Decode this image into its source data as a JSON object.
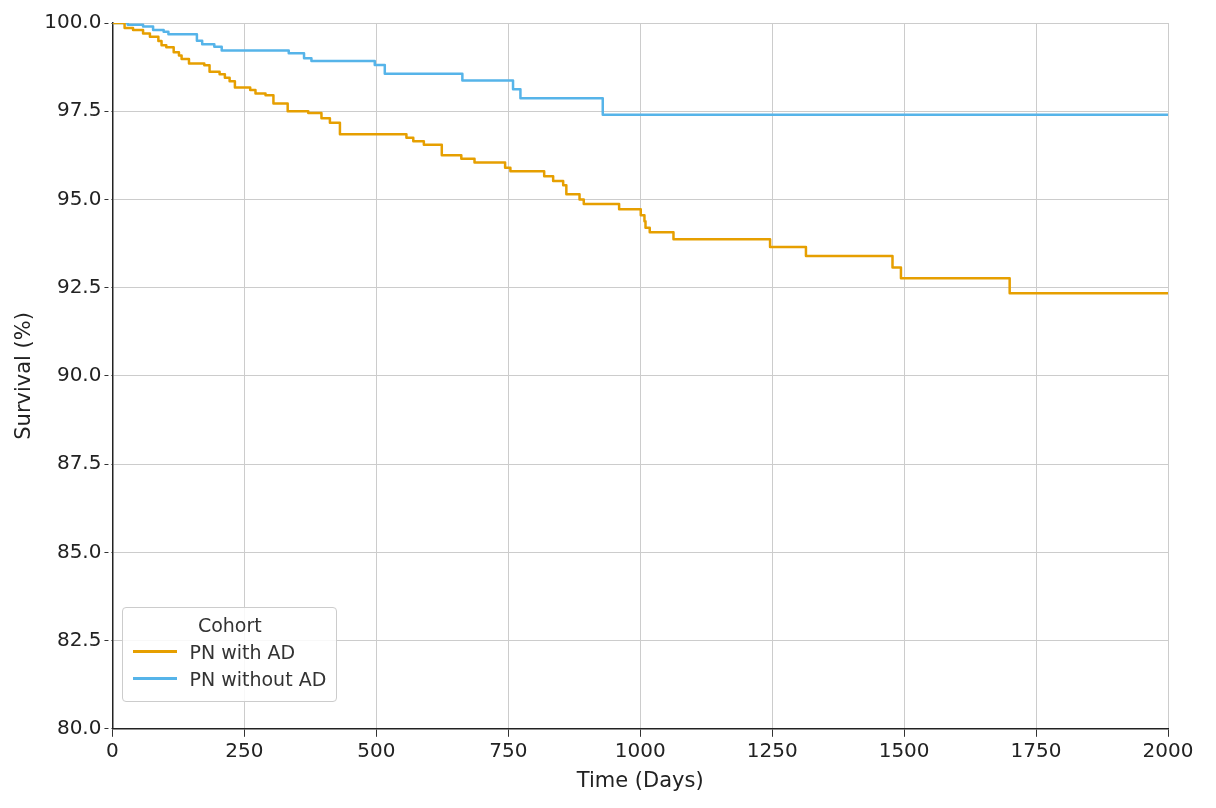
{
  "chart_data": {
    "type": "step",
    "xlabel": "Time (Days)",
    "ylabel": "Survival (%)",
    "legend_title": "Cohort",
    "legend": "bottom left",
    "grid": true,
    "xlim": [
      0,
      2000
    ],
    "xticks": [
      0,
      250,
      500,
      750,
      1000,
      1250,
      1500,
      1750,
      2000
    ],
    "ylim": [
      80,
      100
    ],
    "yticks": [
      {
        "value": 80,
        "label": "80.0"
      },
      {
        "value": 82.5,
        "label": "82.5"
      },
      {
        "value": 85,
        "label": "85.0"
      },
      {
        "value": 87.5,
        "label": "87.5"
      },
      {
        "value": 90,
        "label": "90.0"
      },
      {
        "value": 92.5,
        "label": "92.5"
      },
      {
        "value": 95,
        "label": "95.0"
      },
      {
        "value": 97.5,
        "label": "97.5"
      },
      {
        "value": 100,
        "label": "100.0"
      }
    ],
    "series": [
      {
        "name": "PN with AD",
        "color": "#e69f00",
        "x": [
          0,
          23,
          39,
          58,
          71,
          87,
          93,
          102,
          116,
          126,
          131,
          145,
          174,
          184,
          203,
          213,
          222,
          232,
          261,
          271,
          290,
          305,
          332,
          371,
          396,
          412,
          431,
          557,
          570,
          590,
          624,
          661,
          686,
          744,
          754,
          818,
          835,
          854,
          860,
          885,
          893,
          960,
          1001,
          1008,
          1010,
          1018,
          1063,
          1246,
          1314,
          1478,
          1494,
          1700,
          2000
        ],
        "values": [
          100,
          99.86,
          99.8,
          99.7,
          99.61,
          99.49,
          99.37,
          99.31,
          99.17,
          99.08,
          98.98,
          98.85,
          98.8,
          98.62,
          98.55,
          98.45,
          98.35,
          98.17,
          98.1,
          98.0,
          97.95,
          97.72,
          97.5,
          97.45,
          97.3,
          97.17,
          96.85,
          96.75,
          96.65,
          96.55,
          96.25,
          96.15,
          96.05,
          95.9,
          95.8,
          95.66,
          95.52,
          95.4,
          95.15,
          95.0,
          94.87,
          94.72,
          94.55,
          94.38,
          94.2,
          94.07,
          93.87,
          93.65,
          93.4,
          93.07,
          92.77,
          92.34,
          92.34
        ]
      },
      {
        "name": "PN without AD",
        "color": "#56b4e9",
        "x": [
          0,
          29,
          58,
          77,
          97,
          106,
          160,
          170,
          193,
          207,
          334,
          363,
          377,
          497,
          516,
          663,
          759,
          773,
          929,
          2000
        ],
        "values": [
          100,
          99.95,
          99.9,
          99.8,
          99.75,
          99.68,
          99.5,
          99.4,
          99.33,
          99.22,
          99.14,
          99.0,
          98.92,
          98.81,
          98.56,
          98.37,
          98.12,
          97.87,
          97.4,
          97.4
        ]
      }
    ]
  }
}
